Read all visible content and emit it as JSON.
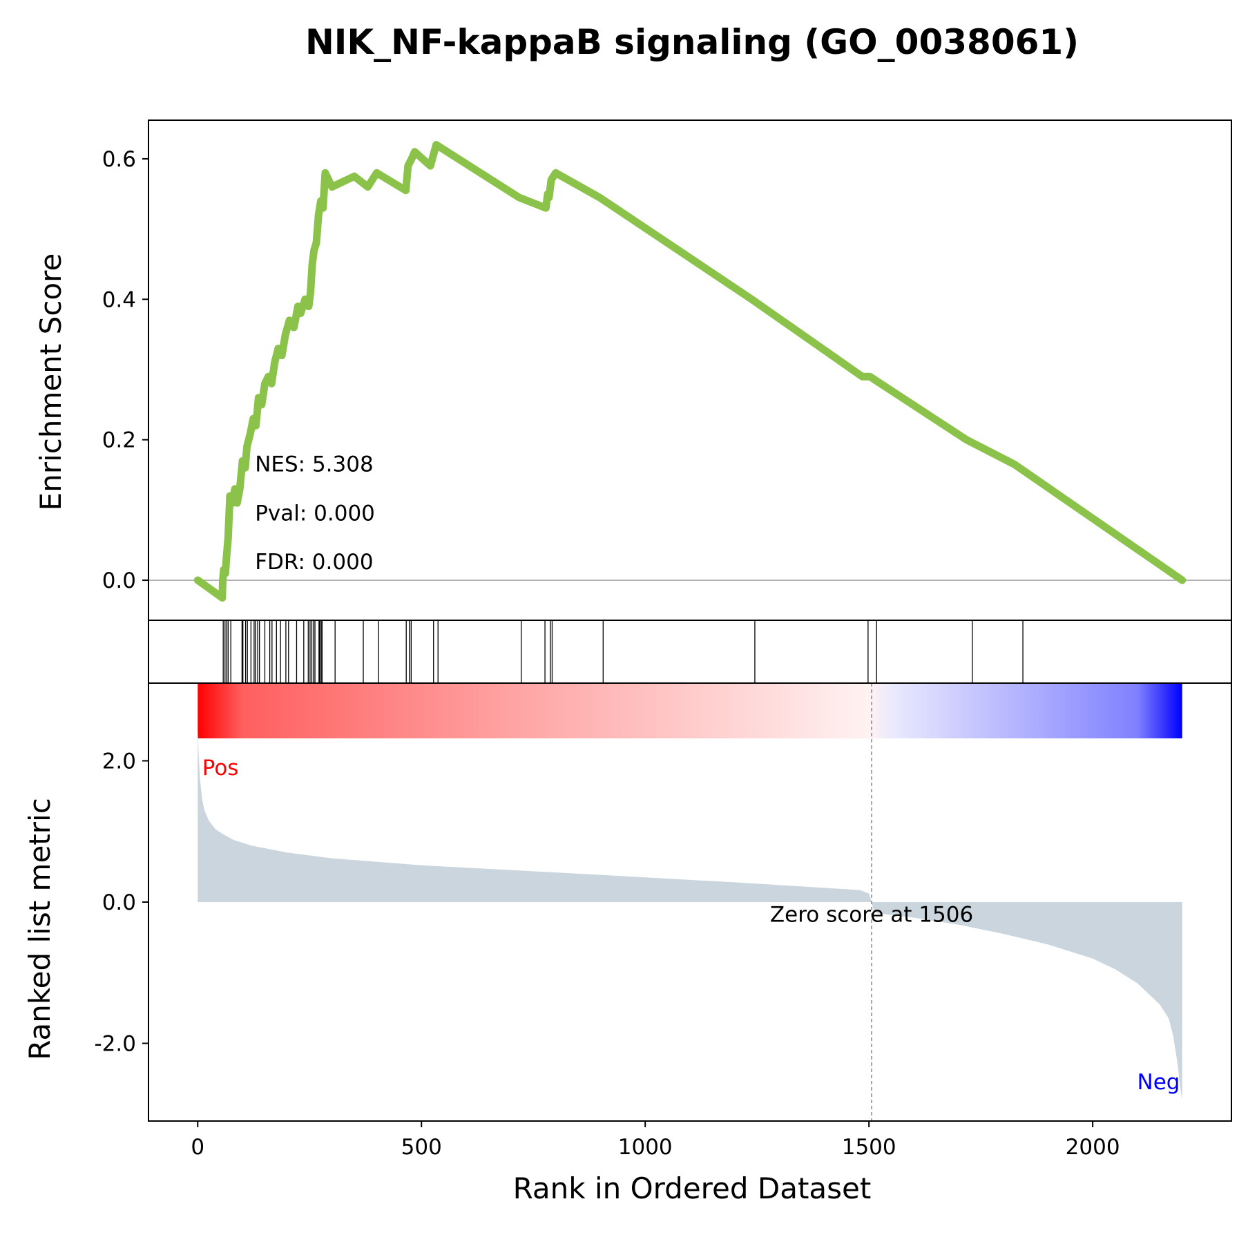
{
  "chart_data": {
    "type": "line",
    "title": "NIK_NF-kappaB signaling (GO_0038061)",
    "xlabel": "Rank in Ordered Dataset",
    "xlim": [
      -110,
      2310
    ],
    "x_ticks": [
      0,
      500,
      1000,
      1500,
      2000
    ],
    "x_tick_labels": [
      "0",
      "500",
      "1000",
      "1500",
      "2000"
    ],
    "panels": {
      "enrichment": {
        "ylabel": "Enrichment Score",
        "ylim": [
          -0.057,
          0.655
        ],
        "y_ticks": [
          0.0,
          0.2,
          0.4,
          0.6
        ],
        "y_tick_labels": [
          "0.0",
          "0.2",
          "0.4",
          "0.6"
        ],
        "line_color": "#8bc34a",
        "zero_line": true,
        "series": [
          {
            "x": [
              0,
              55,
              55,
              56,
              58,
              62,
              64,
              68,
              70,
              72,
              78,
              83,
              88,
              94,
              100,
              106,
              110,
              118,
              124,
              130,
              136,
              143,
              150,
              158,
              165,
              172,
              180,
              188,
              196,
              205,
              215,
              224,
              230,
              240,
              248,
              252,
              256,
              260,
              265,
              270,
              275,
              280,
              285,
              300,
              350,
              380,
              400,
              465,
              470,
              478,
              485,
              520,
              533,
              718,
              778,
              782,
              785,
              790,
              800,
              898,
              1238,
              1485,
              1502,
              1718,
              1825,
              2200
            ],
            "y": [
              0.0,
              -0.025,
              -0.02,
              0.0,
              0.015,
              0.01,
              0.03,
              0.06,
              0.09,
              0.12,
              0.11,
              0.13,
              0.11,
              0.13,
              0.17,
              0.16,
              0.19,
              0.21,
              0.23,
              0.22,
              0.26,
              0.25,
              0.28,
              0.29,
              0.28,
              0.31,
              0.33,
              0.32,
              0.35,
              0.37,
              0.36,
              0.39,
              0.38,
              0.4,
              0.39,
              0.41,
              0.45,
              0.47,
              0.48,
              0.52,
              0.54,
              0.53,
              0.58,
              0.56,
              0.575,
              0.56,
              0.58,
              0.555,
              0.59,
              0.6,
              0.61,
              0.59,
              0.62,
              0.545,
              0.53,
              0.55,
              0.545,
              0.57,
              0.58,
              0.545,
              0.4,
              0.29,
              0.29,
              0.2,
              0.165,
              0.0
            ]
          }
        ],
        "annotations": [
          "NES: 5.308",
          "Pval: 0.000",
          "FDR: 0.000"
        ]
      },
      "hits": {
        "positions": [
          57,
          61,
          65,
          68,
          74,
          99,
          101,
          107,
          111,
          119,
          126,
          129,
          134,
          138,
          150,
          161,
          166,
          176,
          185,
          197,
          203,
          221,
          237,
          247,
          251,
          255,
          259,
          262,
          271,
          273,
          276,
          278,
          307,
          370,
          404,
          466,
          473,
          477,
          527,
          537,
          723,
          776,
          788,
          792,
          906,
          1245,
          1498,
          1517,
          1731,
          1844
        ]
      },
      "gradient": {
        "x_range": [
          0,
          2200
        ],
        "stops": [
          {
            "x": 0,
            "color": "#ff0000"
          },
          {
            "x": 100,
            "color": "#ff5f5f"
          },
          {
            "x": 700,
            "color": "#ffa3a3"
          },
          {
            "x": 1500,
            "color": "#fff2f2"
          },
          {
            "x": 1560,
            "color": "#e8e8ff"
          },
          {
            "x": 2100,
            "color": "#8080ff"
          },
          {
            "x": 2200,
            "color": "#0000ff"
          }
        ]
      },
      "metric": {
        "ylabel": "Ranked list metric",
        "ylim": [
          -3.1,
          3.1
        ],
        "y_ticks": [
          2.0,
          0.0,
          -2.0
        ],
        "y_tick_labels": [
          "2.0",
          "0.0",
          "-2.0"
        ],
        "fill_color": "#cbd5de",
        "x": [
          0,
          2,
          5,
          10,
          15,
          25,
          40,
          60,
          80,
          120,
          200,
          300,
          500,
          800,
          1200,
          1480,
          1500,
          1506,
          1510,
          1520,
          1600,
          1700,
          1800,
          1900,
          2000,
          2050,
          2100,
          2150,
          2170,
          2180,
          2190,
          2195,
          2200
        ],
        "values": [
          2.45,
          2.1,
          1.75,
          1.45,
          1.3,
          1.15,
          1.03,
          0.95,
          0.88,
          0.8,
          0.7,
          0.62,
          0.52,
          0.42,
          0.28,
          0.17,
          0.12,
          0.0,
          -0.12,
          -0.16,
          -0.22,
          -0.32,
          -0.45,
          -0.6,
          -0.8,
          -0.95,
          -1.15,
          -1.45,
          -1.65,
          -1.9,
          -2.3,
          -2.6,
          -2.8
        ],
        "zero_score_x": 1506,
        "zero_label": "Zero score at 1506",
        "pos_label": "Pos",
        "neg_label": "Neg",
        "pos_color": "#ff0000",
        "neg_color": "#0000ff"
      }
    }
  }
}
